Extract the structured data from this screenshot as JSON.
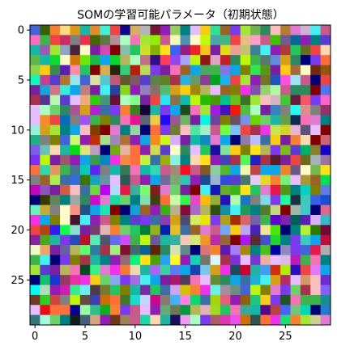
{
  "chart_data": {
    "type": "heatmap",
    "title": "SOMの学習可能パラメータ（初期状態）",
    "rows": 30,
    "cols": 30,
    "cell_color": "random RGB (initial weight vector)",
    "xlim": [
      -0.5,
      29.5
    ],
    "ylim": [
      29.5,
      -0.5
    ],
    "xticks": [
      0,
      5,
      10,
      15,
      20,
      25
    ],
    "yticks": [
      0,
      5,
      10,
      15,
      20,
      25
    ],
    "grid": false,
    "palette": [
      "#e6194b",
      "#3cb44b",
      "#ffe119",
      "#4363d8",
      "#f58231",
      "#911eb4",
      "#46f0f0",
      "#f032e6",
      "#bcf60c",
      "#fabebe",
      "#008080",
      "#e6beff",
      "#9a6324",
      "#fffac8",
      "#800000",
      "#aaffc3",
      "#808000",
      "#ffd8b1",
      "#000075",
      "#808080",
      "#2d8a5e",
      "#c85a8c",
      "#5a3ccf",
      "#d4a017",
      "#1fb5a0",
      "#a8324a",
      "#6bd16b",
      "#e07bd0",
      "#3a6ea5",
      "#b5b55a",
      "#ff6f3c",
      "#7a1fa2",
      "#22c55e",
      "#ef4444",
      "#0ea5e9",
      "#facc15",
      "#a3e635",
      "#f472b6",
      "#14b8a6",
      "#7c3aed"
    ],
    "seed": 42
  }
}
